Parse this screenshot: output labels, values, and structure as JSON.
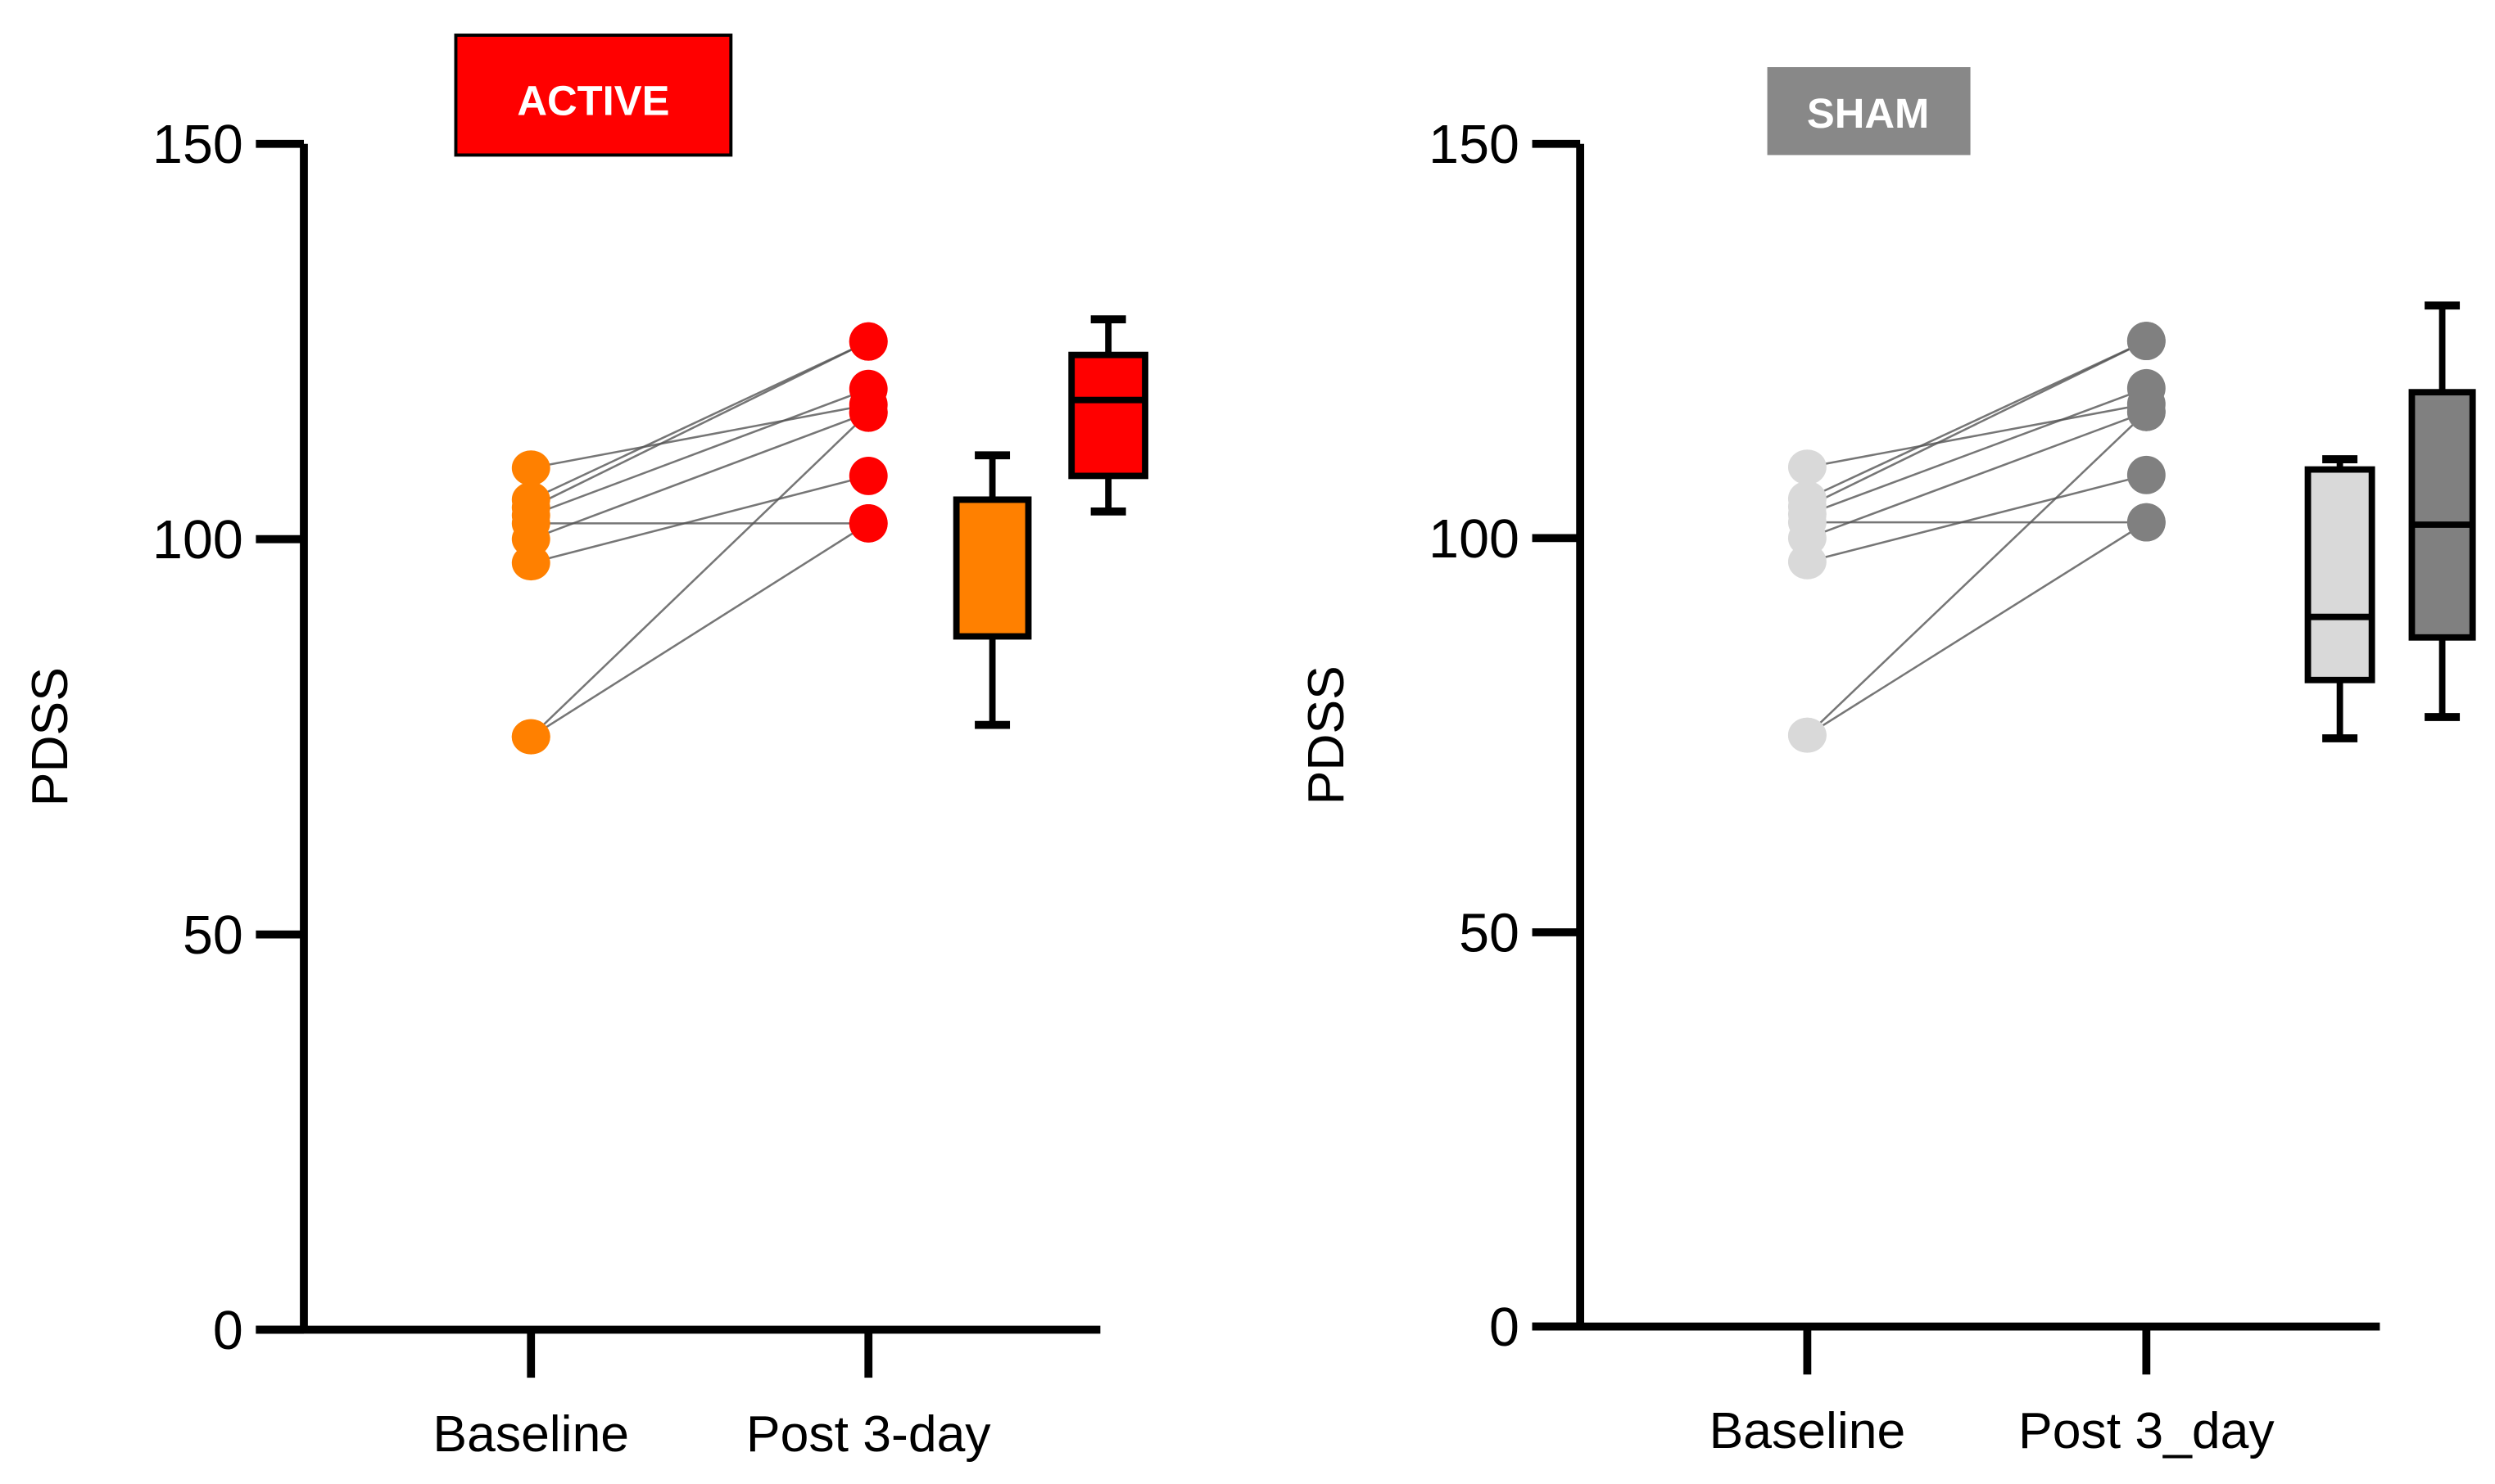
{
  "chart_data": [
    {
      "type": "box+paired-scatter",
      "title": "ACTIVE",
      "title_color": "#ff0000",
      "ylabel": "PDSS",
      "ylim": [
        0,
        150
      ],
      "yticks": [
        "0",
        "50",
        "100",
        "150"
      ],
      "categories": [
        "Baseline",
        "Post 3-day"
      ],
      "point_colors": [
        "#ff8000",
        "#ff0000"
      ],
      "pairs": [
        [
          109,
          117
        ],
        [
          105,
          125
        ],
        [
          104,
          125
        ],
        [
          103,
          119
        ],
        [
          102,
          102
        ],
        [
          100,
          116
        ],
        [
          97,
          108
        ],
        [
          75,
          116
        ],
        [
          75,
          102
        ]
      ],
      "boxes": [
        {
          "name": "Baseline",
          "color": "#ff8000",
          "min": 76.5,
          "q1": 87.7,
          "median": 105,
          "q3": 105,
          "max": 110.6
        },
        {
          "name": "Post 3-day",
          "color": "#ff0000",
          "min": 103.5,
          "q1": 108,
          "median": 117.6,
          "q3": 123.3,
          "max": 127.8
        }
      ]
    },
    {
      "type": "box+paired-scatter",
      "title": "SHAM",
      "title_color": "#888888",
      "ylabel": "PDSS",
      "ylim": [
        0,
        150
      ],
      "yticks": [
        "0",
        "50",
        "100",
        "150"
      ],
      "categories": [
        "Baseline",
        "Post 3_day"
      ],
      "point_colors": [
        "#d9d9d9",
        "#808080"
      ],
      "pairs": [
        [
          109,
          117
        ],
        [
          105,
          125
        ],
        [
          104,
          125
        ],
        [
          103,
          119
        ],
        [
          102,
          102
        ],
        [
          100,
          116
        ],
        [
          97,
          108
        ],
        [
          75,
          116
        ],
        [
          75,
          102
        ]
      ],
      "boxes": [
        {
          "name": "Baseline",
          "color": "#d9d9d9",
          "min": 74.6,
          "q1": 82,
          "median": 90,
          "q3": 108.7,
          "max": 110
        },
        {
          "name": "Post 3_day",
          "color": "#808080",
          "min": 77.3,
          "q1": 87.4,
          "median": 101.7,
          "q3": 118.5,
          "max": 129.5
        }
      ]
    }
  ]
}
